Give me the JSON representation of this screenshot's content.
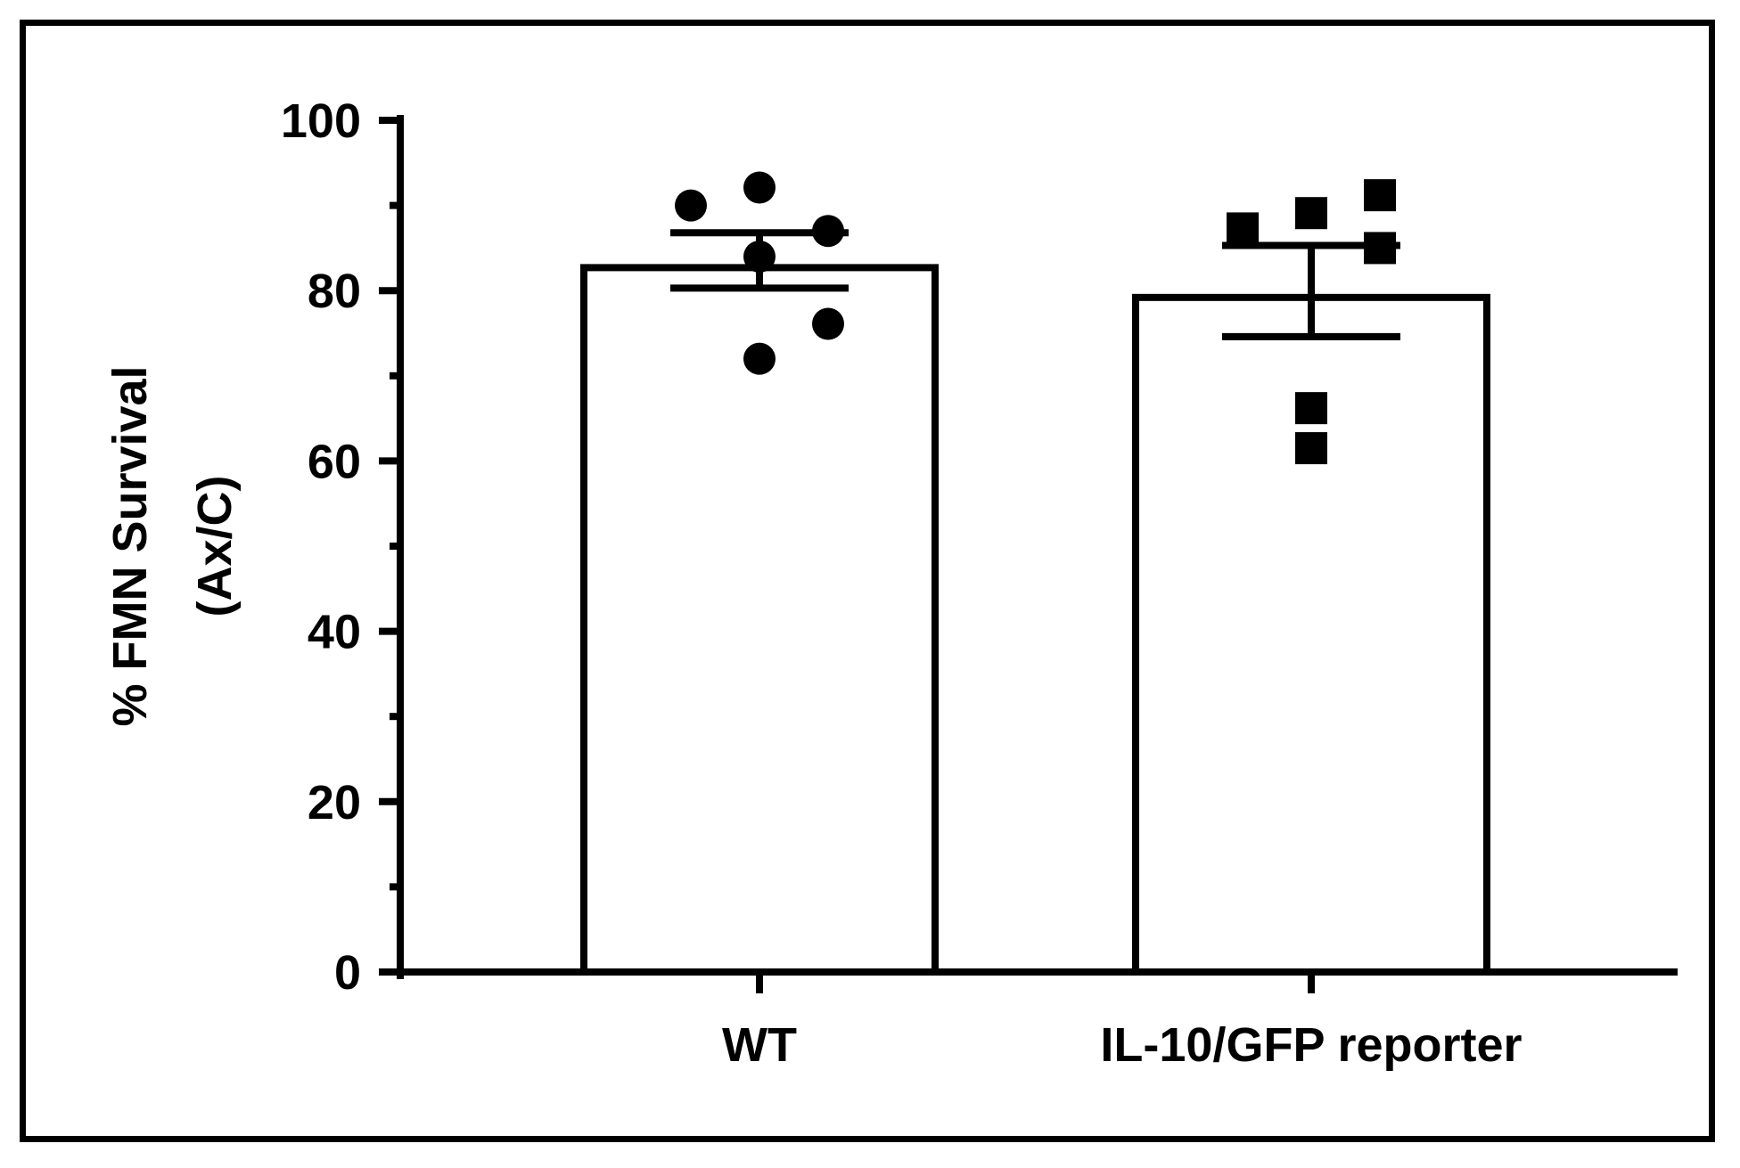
{
  "chart_data": {
    "type": "bar",
    "title": "",
    "xlabel": "",
    "ylabel_lines": [
      "% FMN Survival",
      "(Ax/C)"
    ],
    "ylim": [
      0,
      100
    ],
    "yticks": [
      0,
      20,
      40,
      60,
      80,
      100
    ],
    "yticks_minor": [
      10,
      30,
      50,
      70,
      90
    ],
    "grid": false,
    "legend": "none",
    "categories": [
      "WT",
      "IL-10/GFP reporter"
    ],
    "values": [
      82.7,
      79.2
    ],
    "error": [
      {
        "low": 80.3,
        "high": 86.8
      },
      {
        "low": 74.6,
        "high": 85.3
      }
    ],
    "points": [
      {
        "marker": "circle",
        "values": [
          90.0,
          92.1,
          87.0,
          84.0,
          76.1,
          72.0
        ]
      },
      {
        "marker": "square",
        "values": [
          87.3,
          89.1,
          91.2,
          85.0,
          66.2,
          61.5
        ]
      }
    ],
    "colors": {
      "bar_fill": "#ffffff",
      "stroke": "#000000",
      "marker": "#000000"
    }
  }
}
